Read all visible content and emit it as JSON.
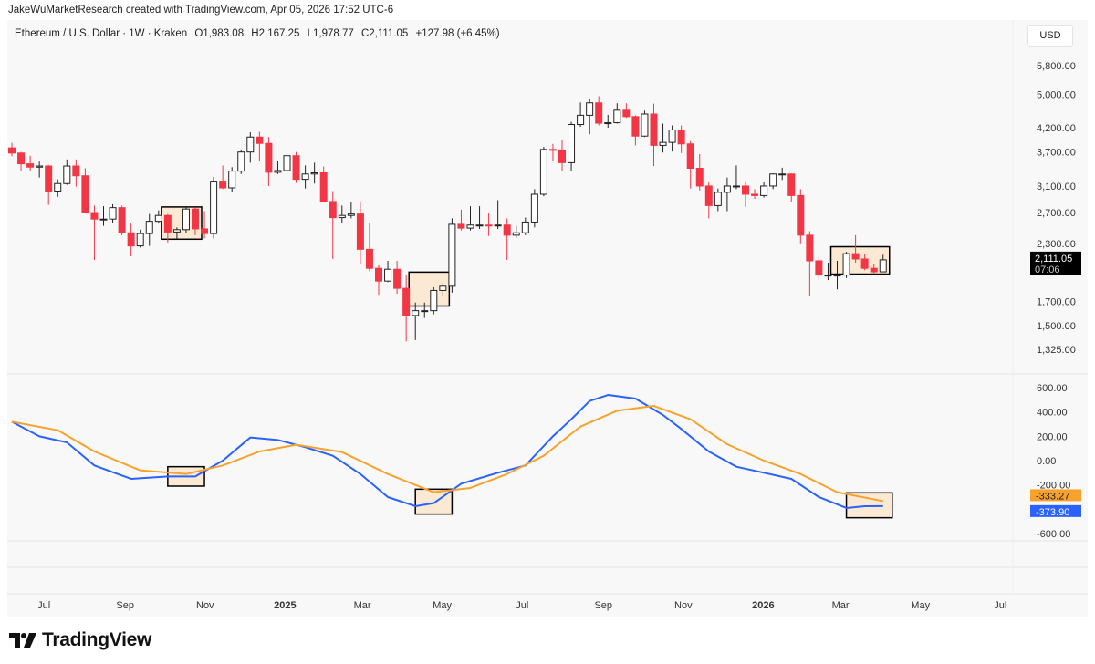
{
  "credit": "JakeWuMarketResearch created with TradingView.com, Apr 05, 2026 17:52 UTC-6",
  "legend": {
    "symbol": "Ethereum / U.S. Dollar · 1W · Kraken",
    "open": "O1,983.08",
    "high": "H2,167.25",
    "low": "L1,978.77",
    "close": "C2,111.05",
    "change": "+127.98 (+6.45%)"
  },
  "currency": "USD",
  "logo": "TradingView",
  "colors": {
    "up": "#ffffff",
    "down": "#f23645",
    "wick": "#222222",
    "macd": "#2962ff",
    "signal": "#f7a22d",
    "highlight": "#fbe9d3",
    "last_tag": "#000000"
  },
  "chart_data": [
    {
      "type": "candlestick",
      "y_scale": "log",
      "y_ticks": [
        "5,800.00",
        "5,000.00",
        "4,200.00",
        "3,700.00",
        "3,100.00",
        "2,700.00",
        "2,300.00",
        "1,700.00",
        "1,500.00",
        "1,325.00"
      ],
      "y_tick_values": [
        5800,
        5000,
        4200,
        3700,
        3100,
        2700,
        2300,
        1700,
        1500,
        1325
      ],
      "last_price_tag": {
        "price": "2,111.05",
        "countdown": "07:06"
      },
      "candles": [
        [
          "2024-06-03",
          3780,
          3880,
          3620,
          3680
        ],
        [
          "2024-06-10",
          3680,
          3700,
          3360,
          3480
        ],
        [
          "2024-06-17",
          3480,
          3630,
          3360,
          3420
        ],
        [
          "2024-06-24",
          3420,
          3520,
          3240,
          3440
        ],
        [
          "2024-07-01",
          3440,
          3460,
          2810,
          3020
        ],
        [
          "2024-07-08",
          3020,
          3210,
          2930,
          3140
        ],
        [
          "2024-07-15",
          3140,
          3560,
          3120,
          3440
        ],
        [
          "2024-07-22",
          3440,
          3560,
          3090,
          3270
        ],
        [
          "2024-07-29",
          3270,
          3400,
          2690,
          2700
        ],
        [
          "2024-08-05",
          2700,
          2800,
          2110,
          2610
        ],
        [
          "2024-08-12",
          2610,
          2790,
          2520,
          2610
        ],
        [
          "2024-08-19",
          2610,
          2820,
          2560,
          2770
        ],
        [
          "2024-08-26",
          2770,
          2800,
          2400,
          2430
        ],
        [
          "2024-09-02",
          2430,
          2550,
          2150,
          2270
        ],
        [
          "2024-09-09",
          2270,
          2470,
          2250,
          2420
        ],
        [
          "2024-09-16",
          2420,
          2680,
          2270,
          2580
        ],
        [
          "2024-09-23",
          2580,
          2730,
          2550,
          2660
        ],
        [
          "2024-09-30",
          2660,
          2680,
          2310,
          2440
        ],
        [
          "2024-10-07",
          2440,
          2500,
          2350,
          2470
        ],
        [
          "2024-10-14",
          2470,
          2770,
          2430,
          2750
        ],
        [
          "2024-10-21",
          2750,
          2770,
          2400,
          2480
        ],
        [
          "2024-10-28",
          2480,
          2720,
          2360,
          2420
        ],
        [
          "2024-11-04",
          2420,
          3250,
          2360,
          3180
        ],
        [
          "2024-11-11",
          3180,
          3450,
          3050,
          3070
        ],
        [
          "2024-11-18",
          3070,
          3420,
          3010,
          3350
        ],
        [
          "2024-11-25",
          3350,
          3740,
          3300,
          3700
        ],
        [
          "2024-12-02",
          3700,
          4100,
          3500,
          4000
        ],
        [
          "2024-12-09",
          4000,
          4110,
          3530,
          3870
        ],
        [
          "2024-12-16",
          3870,
          4000,
          3100,
          3330
        ],
        [
          "2024-12-23",
          3330,
          3540,
          3300,
          3360
        ],
        [
          "2024-12-30",
          3360,
          3740,
          3310,
          3630
        ],
        [
          "2025-01-06",
          3630,
          3700,
          3150,
          3210
        ],
        [
          "2025-01-13",
          3210,
          3450,
          3060,
          3300
        ],
        [
          "2025-01-20",
          3300,
          3500,
          3140,
          3320
        ],
        [
          "2025-01-27",
          3320,
          3430,
          2850,
          2860
        ],
        [
          "2025-02-03",
          2860,
          3020,
          2120,
          2630
        ],
        [
          "2025-02-10",
          2630,
          2800,
          2550,
          2660
        ],
        [
          "2025-02-17",
          2660,
          2850,
          2620,
          2680
        ],
        [
          "2025-02-24",
          2680,
          2850,
          2070,
          2230
        ],
        [
          "2025-03-03",
          2230,
          2550,
          1990,
          2020
        ],
        [
          "2025-03-10",
          2020,
          2050,
          1760,
          1890
        ],
        [
          "2025-03-17",
          1890,
          2100,
          1880,
          2010
        ],
        [
          "2025-03-24",
          2010,
          2100,
          1770,
          1820
        ],
        [
          "2025-03-31",
          1820,
          1950,
          1380,
          1580
        ],
        [
          "2025-04-07",
          1580,
          1690,
          1390,
          1620
        ],
        [
          "2025-04-14",
          1620,
          1690,
          1560,
          1620
        ],
        [
          "2025-04-21",
          1620,
          1830,
          1590,
          1800
        ],
        [
          "2025-04-28",
          1800,
          1870,
          1750,
          1840
        ],
        [
          "2025-05-05",
          1840,
          2620,
          1780,
          2540
        ],
        [
          "2025-05-12",
          2540,
          2740,
          2460,
          2490
        ],
        [
          "2025-05-19",
          2490,
          2790,
          2460,
          2530
        ],
        [
          "2025-05-26",
          2530,
          2790,
          2480,
          2530
        ],
        [
          "2025-06-02",
          2530,
          2700,
          2390,
          2520
        ],
        [
          "2025-06-09",
          2520,
          2880,
          2480,
          2530
        ],
        [
          "2025-06-16",
          2530,
          2620,
          2110,
          2400
        ],
        [
          "2025-06-23",
          2400,
          2520,
          2370,
          2430
        ],
        [
          "2025-06-30",
          2430,
          2630,
          2400,
          2570
        ],
        [
          "2025-07-07",
          2570,
          3050,
          2500,
          2970
        ],
        [
          "2025-07-14",
          2970,
          3800,
          2940,
          3750
        ],
        [
          "2025-07-21",
          3750,
          3860,
          3540,
          3740
        ],
        [
          "2025-07-28",
          3740,
          3940,
          3350,
          3500
        ],
        [
          "2025-08-04",
          3500,
          4330,
          3360,
          4270
        ],
        [
          "2025-08-11",
          4270,
          4790,
          4220,
          4480
        ],
        [
          "2025-08-18",
          4480,
          4890,
          4060,
          4780
        ],
        [
          "2025-08-25",
          4780,
          4950,
          4250,
          4300
        ],
        [
          "2025-09-01",
          4300,
          4490,
          4200,
          4310
        ],
        [
          "2025-09-08",
          4310,
          4770,
          4290,
          4600
        ],
        [
          "2025-09-15",
          4600,
          4770,
          4420,
          4450
        ],
        [
          "2025-09-22",
          4450,
          4480,
          3830,
          4020
        ],
        [
          "2025-09-29",
          4020,
          4590,
          4000,
          4510
        ],
        [
          "2025-10-06",
          4510,
          4760,
          3440,
          3830
        ],
        [
          "2025-10-13",
          3830,
          4290,
          3690,
          3890
        ],
        [
          "2025-10-20",
          3890,
          4250,
          3710,
          4150
        ],
        [
          "2025-10-27",
          4150,
          4250,
          3680,
          3860
        ],
        [
          "2025-11-03",
          3860,
          3920,
          3060,
          3400
        ],
        [
          "2025-11-10",
          3400,
          3660,
          3030,
          3100
        ],
        [
          "2025-11-17",
          3100,
          3170,
          2620,
          2800
        ],
        [
          "2025-11-24",
          2800,
          3060,
          2720,
          3000
        ],
        [
          "2025-12-01",
          3000,
          3240,
          2720,
          3100
        ],
        [
          "2025-12-08",
          3100,
          3450,
          3050,
          3100
        ],
        [
          "2025-12-15",
          3100,
          3180,
          2780,
          2970
        ],
        [
          "2025-12-22",
          2970,
          3050,
          2900,
          2950
        ],
        [
          "2025-12-29",
          2950,
          3160,
          2920,
          3100
        ],
        [
          "2026-01-05",
          3100,
          3310,
          3050,
          3300
        ],
        [
          "2026-01-12",
          3300,
          3410,
          3200,
          3300
        ],
        [
          "2026-01-19",
          3300,
          3310,
          2850,
          2950
        ],
        [
          "2026-01-26",
          2950,
          3050,
          2300,
          2400
        ],
        [
          "2026-02-02",
          2400,
          2450,
          1750,
          2100
        ],
        [
          "2026-02-09",
          2100,
          2150,
          1900,
          1950
        ],
        [
          "2026-02-16",
          1950,
          2080,
          1900,
          1950
        ],
        [
          "2026-02-23",
          1950,
          2100,
          1810,
          1950
        ],
        [
          "2026-03-02",
          1950,
          2200,
          1920,
          2180
        ],
        [
          "2026-03-09",
          2180,
          2400,
          2080,
          2120
        ],
        [
          "2026-03-16",
          2120,
          2180,
          2000,
          2020
        ],
        [
          "2026-03-23",
          2020,
          2070,
          1970,
          1983
        ],
        [
          "2026-03-30",
          1983.08,
          2167.25,
          1978.77,
          2111.05
        ]
      ],
      "highlights": [
        [
          "2024-09-30",
          "2024-10-21",
          2350,
          2780
        ],
        [
          "2025-04-07",
          "2025-04-28",
          1660,
          1980
        ],
        [
          "2026-02-23",
          "2026-03-30",
          1960,
          2260
        ]
      ]
    },
    {
      "type": "line",
      "y_ticks": [
        "600.00",
        "400.00",
        "200.00",
        "0.00",
        "-200.00",
        "-600.00"
      ],
      "y_tick_values": [
        600,
        400,
        200,
        0,
        -200,
        -600
      ],
      "last_value_tags": {
        "signal": "-333.27",
        "macd": "-373.90"
      },
      "series": [
        {
          "key": "macd",
          "points": [
            [
              "2024-06-03",
              320
            ],
            [
              "2024-06-24",
              200
            ],
            [
              "2024-07-15",
              150
            ],
            [
              "2024-08-05",
              -40
            ],
            [
              "2024-09-02",
              -150
            ],
            [
              "2024-09-30",
              -130
            ],
            [
              "2024-10-21",
              -130
            ],
            [
              "2024-11-11",
              0
            ],
            [
              "2024-12-02",
              190
            ],
            [
              "2024-12-23",
              170
            ],
            [
              "2025-01-13",
              110
            ],
            [
              "2025-02-03",
              40
            ],
            [
              "2025-02-24",
              -110
            ],
            [
              "2025-03-17",
              -300
            ],
            [
              "2025-04-07",
              -375
            ],
            [
              "2025-04-21",
              -350
            ],
            [
              "2025-05-12",
              -190
            ],
            [
              "2025-06-09",
              -100
            ],
            [
              "2025-06-30",
              -40
            ],
            [
              "2025-07-21",
              200
            ],
            [
              "2025-08-04",
              340
            ],
            [
              "2025-08-18",
              490
            ],
            [
              "2025-09-01",
              540
            ],
            [
              "2025-09-22",
              510
            ],
            [
              "2025-10-13",
              375
            ],
            [
              "2025-10-27",
              260
            ],
            [
              "2025-11-17",
              75
            ],
            [
              "2025-12-08",
              -50
            ],
            [
              "2025-12-29",
              -100
            ],
            [
              "2026-01-19",
              -150
            ],
            [
              "2026-02-09",
              -300
            ],
            [
              "2026-03-02",
              -390
            ],
            [
              "2026-03-16",
              -375
            ],
            [
              "2026-03-30",
              -373.9
            ]
          ]
        },
        {
          "key": "signal",
          "points": [
            [
              "2024-06-03",
              320
            ],
            [
              "2024-07-08",
              250
            ],
            [
              "2024-08-05",
              75
            ],
            [
              "2024-09-09",
              -80
            ],
            [
              "2024-10-14",
              -110
            ],
            [
              "2024-11-11",
              -40
            ],
            [
              "2024-12-09",
              75
            ],
            [
              "2025-01-06",
              130
            ],
            [
              "2025-02-10",
              70
            ],
            [
              "2025-03-17",
              -110
            ],
            [
              "2025-04-21",
              -260
            ],
            [
              "2025-05-19",
              -225
            ],
            [
              "2025-06-16",
              -110
            ],
            [
              "2025-07-14",
              40
            ],
            [
              "2025-08-11",
              280
            ],
            [
              "2025-09-08",
              410
            ],
            [
              "2025-10-06",
              450
            ],
            [
              "2025-11-03",
              340
            ],
            [
              "2025-12-01",
              135
            ],
            [
              "2025-12-29",
              0
            ],
            [
              "2026-01-26",
              -110
            ],
            [
              "2026-02-23",
              -260
            ],
            [
              "2026-03-30",
              -333.27
            ]
          ]
        }
      ],
      "highlights": [
        [
          "2024-09-30",
          "2024-10-28",
          -50,
          -210
        ],
        [
          "2025-04-07",
          "2025-05-05",
          -235,
          -440
        ],
        [
          "2026-03-02",
          "2026-04-06",
          -265,
          -470
        ]
      ]
    }
  ],
  "time_axis": [
    {
      "label": "Jul",
      "date": "2024-07-01"
    },
    {
      "label": "Sep",
      "date": "2024-09-01"
    },
    {
      "label": "Nov",
      "date": "2024-11-01"
    },
    {
      "label": "2025",
      "date": "2025-01-01",
      "bold": true
    },
    {
      "label": "Mar",
      "date": "2025-03-01"
    },
    {
      "label": "May",
      "date": "2025-05-01"
    },
    {
      "label": "Jul",
      "date": "2025-07-01"
    },
    {
      "label": "Sep",
      "date": "2025-09-01"
    },
    {
      "label": "Nov",
      "date": "2025-11-01"
    },
    {
      "label": "2026",
      "date": "2026-01-01",
      "bold": true
    },
    {
      "label": "Mar",
      "date": "2026-03-01"
    },
    {
      "label": "May",
      "date": "2026-05-01"
    },
    {
      "label": "Jul",
      "date": "2026-07-01"
    }
  ]
}
